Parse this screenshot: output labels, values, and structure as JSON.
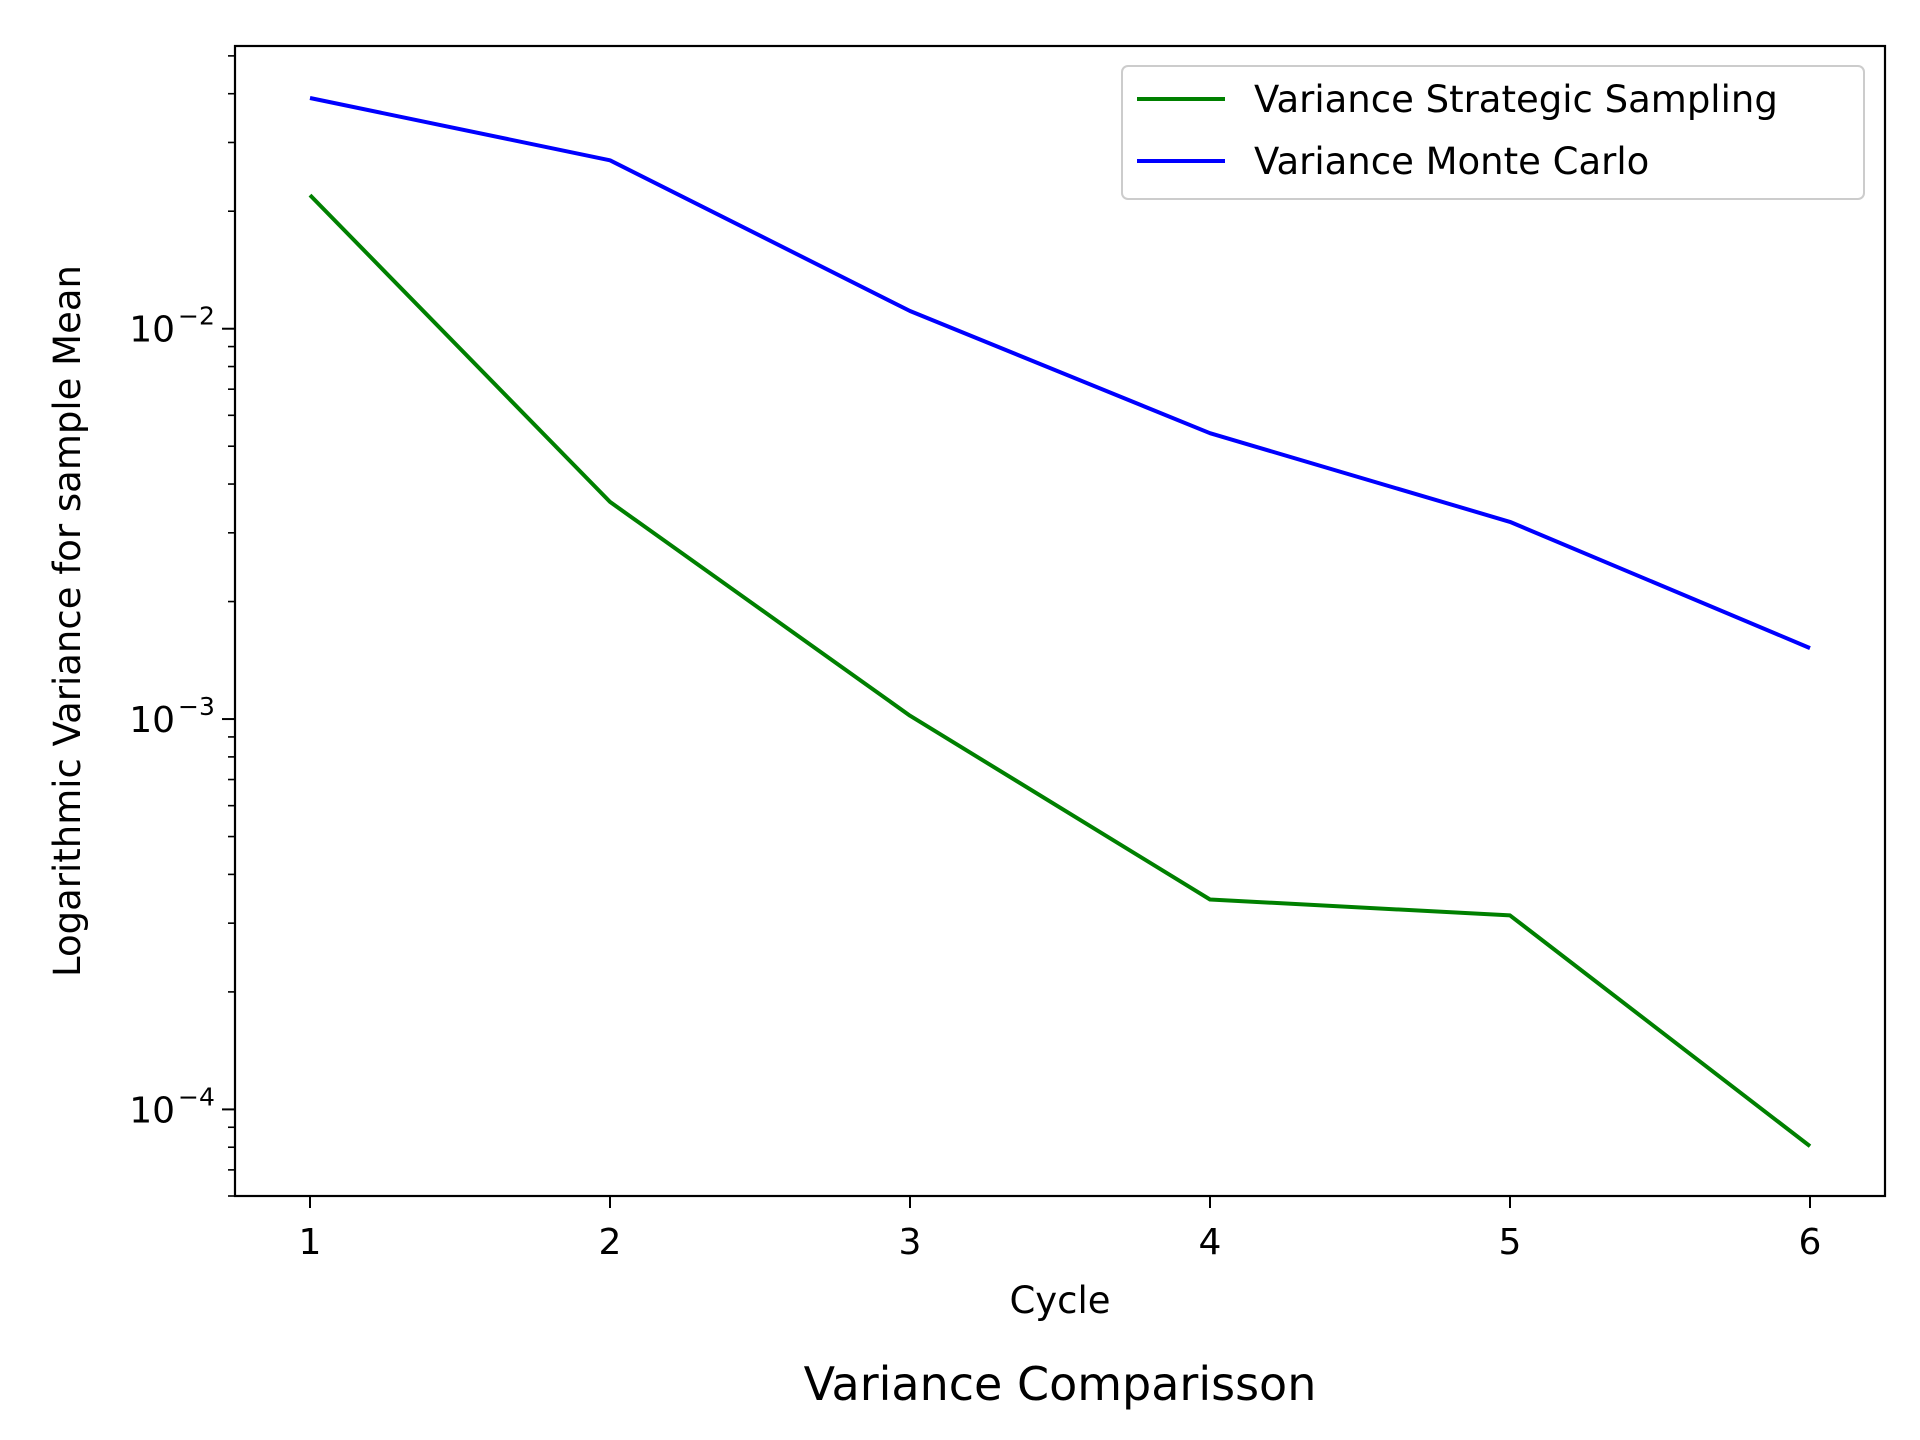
{
  "chart_data": {
    "type": "line",
    "title": "Variance Comparisson",
    "xlabel": "Cycle",
    "ylabel": "Logarithmic Variance for sample Mean",
    "x": [
      1,
      2,
      3,
      4,
      5,
      6
    ],
    "xticks": [
      "1",
      "2",
      "3",
      "4",
      "5",
      "6"
    ],
    "xlim": [
      0.75,
      6.25
    ],
    "yscale": "log",
    "ylim": [
      6e-05,
      0.053
    ],
    "yticks": [
      {
        "value": 0.01,
        "base": "10",
        "exp": "−2"
      },
      {
        "value": 0.001,
        "base": "10",
        "exp": "−3"
      },
      {
        "value": 0.0001,
        "base": "10",
        "exp": "−4"
      }
    ],
    "grid": false,
    "legend_position": "top-right",
    "series": [
      {
        "name": "Variance Strategic Sampling",
        "color": "#008000",
        "values": [
          0.022,
          0.0036,
          0.00102,
          0.000345,
          0.000314,
          8.05e-05
        ]
      },
      {
        "name": "Variance Monte Carlo",
        "color": "#0000ff",
        "values": [
          0.039,
          0.027,
          0.0111,
          0.0054,
          0.0032,
          0.00152
        ]
      }
    ]
  }
}
